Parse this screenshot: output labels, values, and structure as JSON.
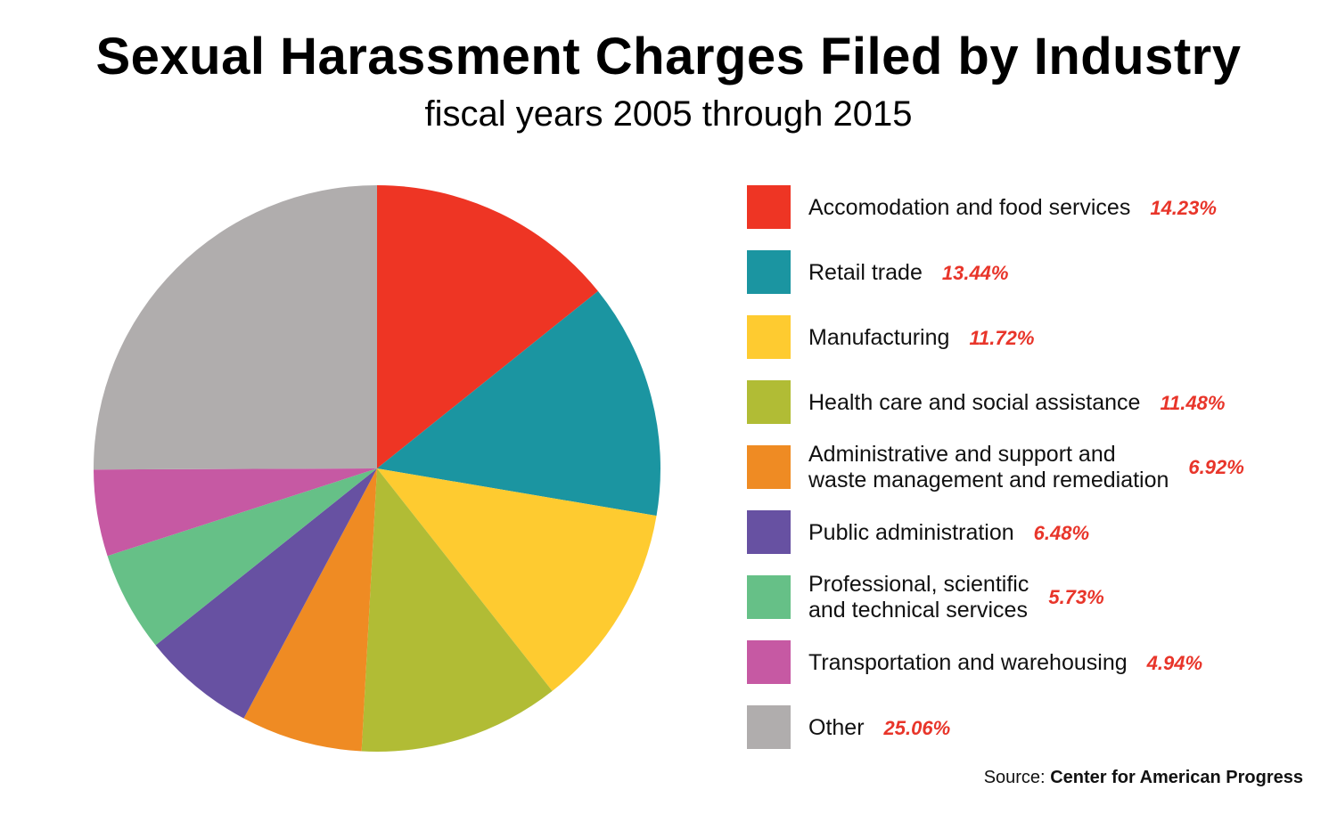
{
  "title": "Sexual Harassment Charges Filed by Industry",
  "subtitle": "fiscal years 2005 through 2015",
  "source": {
    "label": "Source:",
    "name": "Center for American Progress"
  },
  "chart_data": {
    "type": "pie",
    "title": "Sexual Harassment Charges Filed by Industry",
    "subtitle": "fiscal years 2005 through 2015",
    "unit": "%",
    "start_angle": "12 o'clock",
    "direction": "clockwise",
    "slices": [
      {
        "label": "Accomodation and food services",
        "lines": [
          "Accomodation and food services"
        ],
        "value": 14.23,
        "value_label": "14.23%",
        "color": "#ee3524"
      },
      {
        "label": "Retail trade",
        "lines": [
          "Retail trade"
        ],
        "value": 13.44,
        "value_label": "13.44%",
        "color": "#1b95a1"
      },
      {
        "label": "Manufacturing",
        "lines": [
          "Manufacturing"
        ],
        "value": 11.72,
        "value_label": "11.72%",
        "color": "#fecb30"
      },
      {
        "label": "Health care and social assistance",
        "lines": [
          "Health care and social assistance"
        ],
        "value": 11.48,
        "value_label": "11.48%",
        "color": "#b1bc35"
      },
      {
        "label": "Administrative and support and waste management and remediation",
        "lines": [
          "Administrative and support and",
          "waste management and remediation"
        ],
        "value": 6.92,
        "value_label": "6.92%",
        "color": "#ef8b23"
      },
      {
        "label": "Public administration",
        "lines": [
          "Public administration"
        ],
        "value": 6.48,
        "value_label": "6.48%",
        "color": "#6751a2"
      },
      {
        "label": "Professional, scientific and technical services",
        "lines": [
          "Professional, scientific",
          "and technical services"
        ],
        "value": 5.73,
        "value_label": "5.73%",
        "color": "#66c087"
      },
      {
        "label": "Transportation and warehousing",
        "lines": [
          "Transportation and warehousing"
        ],
        "value": 4.94,
        "value_label": "4.94%",
        "color": "#c659a3"
      },
      {
        "label": "Other",
        "lines": [
          "Other"
        ],
        "value": 25.06,
        "value_label": "25.06%",
        "color": "#b0adad"
      }
    ]
  }
}
